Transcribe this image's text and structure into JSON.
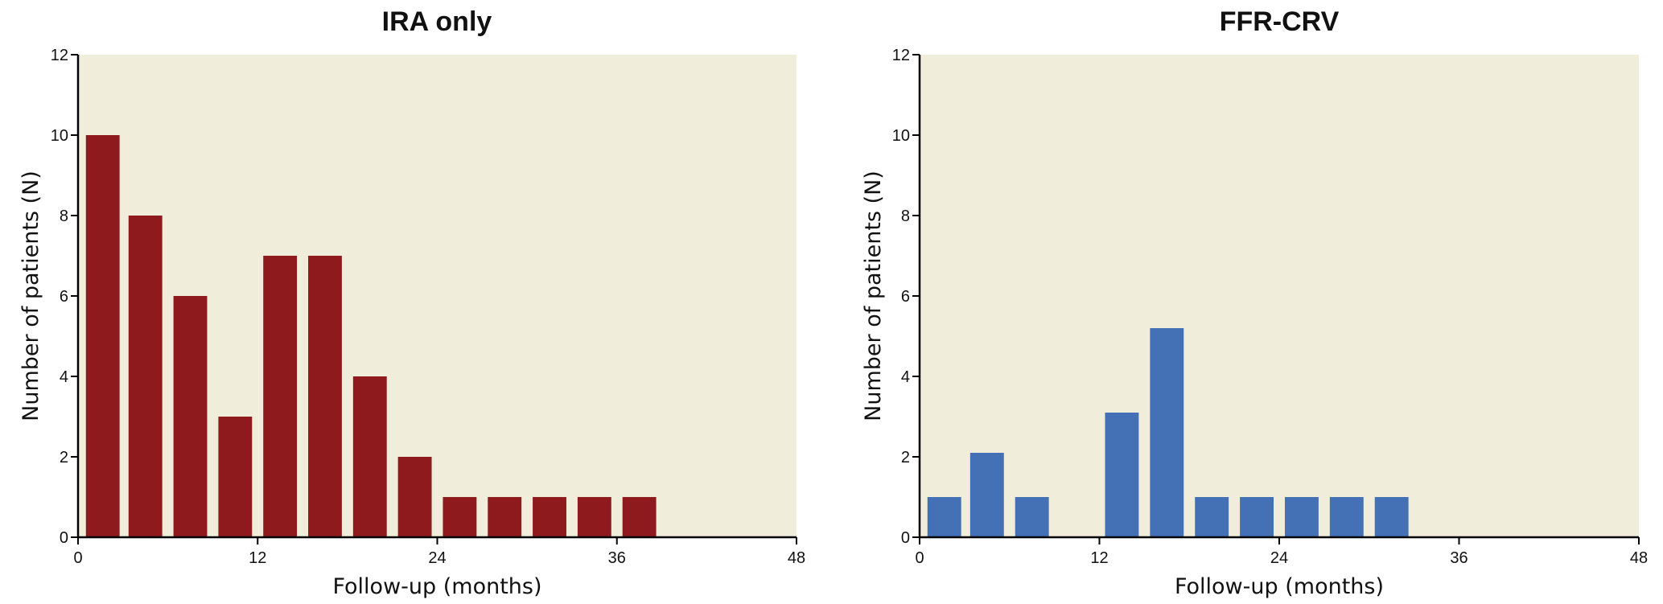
{
  "chart_data": [
    {
      "type": "bar",
      "title": "IRA only",
      "xlabel": "Follow-up (months)",
      "ylabel": "Number of patients (N)",
      "xlim": [
        0,
        48
      ],
      "ylim": [
        0,
        12
      ],
      "xticks": [
        0,
        12,
        24,
        36,
        48
      ],
      "yticks": [
        0,
        2,
        4,
        6,
        8,
        10,
        12
      ],
      "bar_width": 2.25,
      "color": "#8E1A1E",
      "background": "#F1EDDB",
      "grid": false,
      "x": [
        1.65,
        4.5,
        7.5,
        10.5,
        13.5,
        16.5,
        19.5,
        22.5,
        25.5,
        28.5,
        31.5,
        34.5,
        37.5
      ],
      "values": [
        10,
        8,
        6,
        3,
        7,
        7,
        4,
        2,
        1,
        1,
        1,
        1,
        1
      ]
    },
    {
      "type": "bar",
      "title": "FFR-CRV",
      "xlabel": "Follow-up (months)",
      "ylabel": "Number of patients (N)",
      "xlim": [
        0,
        48
      ],
      "ylim": [
        0,
        12
      ],
      "xticks": [
        0,
        12,
        24,
        36,
        48
      ],
      "yticks": [
        0,
        2,
        4,
        6,
        8,
        10,
        12
      ],
      "bar_width": 2.25,
      "color": "#4470B6",
      "background": "#F1EDDB",
      "grid": false,
      "x": [
        1.65,
        4.5,
        7.5,
        13.5,
        16.5,
        19.5,
        22.5,
        25.5,
        28.5,
        31.5
      ],
      "values": [
        1,
        2.1,
        1,
        3.1,
        5.2,
        1,
        1,
        1,
        1,
        1
      ]
    }
  ]
}
